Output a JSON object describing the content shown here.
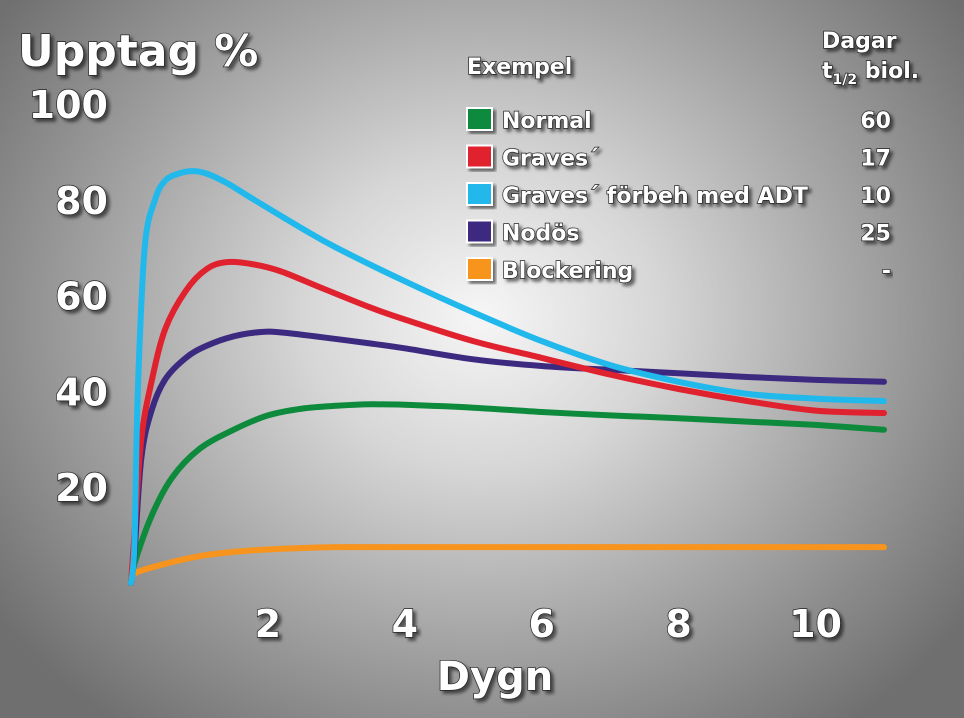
{
  "chart_data": {
    "type": "line",
    "ylabel": "Upptag %",
    "xlabel": "Dygn",
    "xlim": [
      0,
      11
    ],
    "ylim": [
      0,
      100
    ],
    "x_ticks": [
      "2",
      "4",
      "6",
      "8",
      "10"
    ],
    "y_ticks": [
      "20",
      "40",
      "60",
      "80",
      "100"
    ],
    "grid": false,
    "legend": {
      "position": "top-right",
      "header_left": "Exempel",
      "header_right_line1": "Dagar",
      "header_right_line2_t": "t",
      "header_right_line2_sub": "1/2",
      "header_right_line2_rest": " biol."
    },
    "series": [
      {
        "name": "Normal",
        "legend_value": "60",
        "color": "#0d8a3c",
        "x": [
          0.05,
          0.3,
          0.6,
          1,
          1.5,
          2,
          2.5,
          3,
          3.5,
          4,
          5,
          6,
          7,
          8,
          9,
          10,
          11
        ],
        "y": [
          4,
          14,
          22,
          28,
          32,
          35,
          36.4,
          37,
          37.3,
          37.2,
          36.6,
          35.7,
          35,
          34.4,
          33.7,
          33,
          32
        ]
      },
      {
        "name": "Graves´",
        "legend_value": "17",
        "color": "#e0212e",
        "x": [
          0.05,
          0.15,
          0.3,
          0.5,
          0.8,
          1.1,
          1.4,
          1.8,
          2.2,
          2.8,
          3.5,
          4,
          5,
          6,
          7,
          8,
          9,
          10,
          11
        ],
        "y": [
          10,
          30,
          42,
          53,
          61,
          65.5,
          67,
          66.5,
          65,
          61.5,
          57.5,
          55,
          50.5,
          47,
          43.5,
          40.5,
          38,
          36,
          35.5
        ]
      },
      {
        "name": "Graves´ förbeh med ADT",
        "legend_value": "10",
        "color": "#21b8ec",
        "x": [
          0.05,
          0.1,
          0.2,
          0.35,
          0.5,
          0.7,
          0.9,
          1.1,
          1.4,
          1.8,
          2.5,
          3,
          4,
          5,
          6,
          7,
          8,
          9,
          10,
          11
        ],
        "y": [
          8,
          40,
          70,
          80,
          84,
          85.5,
          86,
          85.5,
          83.5,
          80,
          74,
          70,
          63,
          56.5,
          50.5,
          45.5,
          42,
          39.5,
          38.5,
          38
        ]
      },
      {
        "name": "Nodös",
        "legend_value": "25",
        "color": "#3c2a80",
        "x": [
          0.05,
          0.15,
          0.3,
          0.5,
          0.8,
          1.1,
          1.5,
          1.9,
          2.2,
          2.8,
          3.5,
          4,
          5,
          6,
          7,
          8,
          9,
          10,
          11
        ],
        "y": [
          6,
          26,
          36,
          42.5,
          47,
          49.5,
          51.5,
          52.4,
          52.3,
          51.3,
          50,
          49,
          46.7,
          45.3,
          44.5,
          43.8,
          43,
          42.4,
          42
        ]
      },
      {
        "name": "Blockering",
        "legend_value": "-",
        "color": "#f7941d",
        "x": [
          0.05,
          0.5,
          1,
          1.5,
          2,
          2.5,
          3,
          4,
          6,
          8,
          10,
          11
        ],
        "y": [
          2,
          4,
          5.6,
          6.5,
          7,
          7.3,
          7.5,
          7.5,
          7.5,
          7.5,
          7.5,
          7.5
        ]
      }
    ]
  }
}
